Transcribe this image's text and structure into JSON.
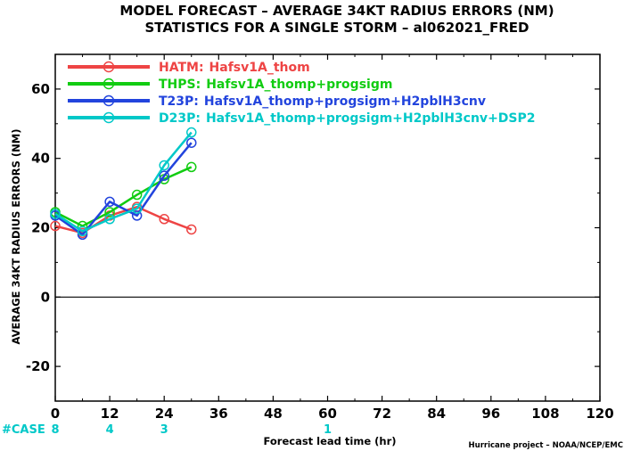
{
  "title_line1": "MODEL FORECAST – AVERAGE 34KT RADIUS ERRORS (NM)",
  "title_line2": "STATISTICS FOR A SINGLE STORM – al062021_FRED",
  "credit": "Hurricane project – NOAA/NCEP/EMC",
  "case_label": "#CASE",
  "chart_data": {
    "type": "line",
    "xlabel": "Forecast lead time (hr)",
    "ylabel": "AVERAGE 34KT RADIUS ERRORS (NM)",
    "xlim": [
      0,
      120
    ],
    "ylim": [
      -30,
      70
    ],
    "x_ticks": [
      "0",
      "12",
      "24",
      "36",
      "48",
      "60",
      "72",
      "84",
      "96",
      "108",
      "120"
    ],
    "y_ticks": [
      "60",
      "40",
      "20",
      "0",
      "-20"
    ],
    "legend_position": "top-left",
    "zero_line": true,
    "cases": [
      {
        "x": 0,
        "count": "8"
      },
      {
        "x": 12,
        "count": "4"
      },
      {
        "x": 24,
        "count": "3"
      },
      {
        "x": 60,
        "count": "1"
      }
    ],
    "series": [
      {
        "name": "HATM:",
        "desc": "Hafsv1A_thom",
        "color": "#ee4444",
        "x": [
          0,
          6,
          12,
          18,
          24,
          30
        ],
        "values": [
          20.5,
          18.5,
          23.5,
          26,
          22.5,
          19.5
        ]
      },
      {
        "name": "THPS:",
        "desc": "Hafsv1A_thomp+progsigm",
        "color": "#11cc11",
        "x": [
          0,
          6,
          12,
          18,
          24,
          30
        ],
        "values": [
          24.5,
          20.5,
          24.5,
          29.5,
          34,
          37.5
        ]
      },
      {
        "name": "T23P:",
        "desc": "Hafsv1A_thomp+progsigm+H2pblH3cnv",
        "color": "#2244dd",
        "x": [
          0,
          6,
          12,
          18,
          24,
          30
        ],
        "values": [
          23.5,
          18,
          27.5,
          23.5,
          35,
          44.5
        ]
      },
      {
        "name": "D23P:",
        "desc": "Hafsv1A_thomp+progsigm+H2pblH3cnv+DSP2",
        "color": "#00c8c8",
        "x": [
          0,
          6,
          12,
          18,
          24,
          30
        ],
        "values": [
          24,
          19,
          22.5,
          25.5,
          38,
          47.5
        ]
      }
    ]
  }
}
